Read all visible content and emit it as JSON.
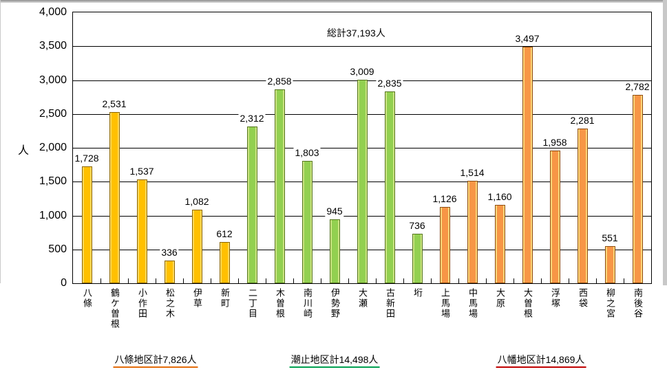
{
  "y_axis_title": "人",
  "annotation": "総計37,193人",
  "chart_data": {
    "type": "bar",
    "title": "",
    "xlabel": "",
    "ylabel": "人",
    "ylim": [
      0,
      4000
    ],
    "ytick_interval": 500,
    "ytick_labels": [
      "0",
      "500",
      "1,000",
      "1,500",
      "2,000",
      "2,500",
      "3,000",
      "3,500",
      "4,000"
    ],
    "grid": "horizontal",
    "legend": "none",
    "total_annotation": "総計37,193人",
    "categories": [
      "八條",
      "鶴ケ曽根",
      "小作田",
      "松之木",
      "伊草",
      "新町",
      "二丁目",
      "木曽根",
      "南川崎",
      "伊勢野",
      "大瀬",
      "古新田",
      "垳",
      "上馬場",
      "中馬場",
      "大原",
      "大曽根",
      "浮塚",
      "西袋",
      "柳之宮",
      "南後谷"
    ],
    "values": [
      1728,
      2531,
      1537,
      336,
      1082,
      612,
      2312,
      2858,
      1803,
      945,
      3009,
      2835,
      736,
      1126,
      1514,
      1160,
      3497,
      1958,
      2281,
      551,
      2782
    ],
    "value_labels": [
      "1,728",
      "2,531",
      "1,537",
      "336",
      "1,082",
      "612",
      "2,312",
      "2,858",
      "1,803",
      "945",
      "3,009",
      "2,835",
      "736",
      "1,126",
      "1,514",
      "1,160",
      "3,497",
      "1,958",
      "2,281",
      "551",
      "2,782"
    ],
    "groups": [
      {
        "name": "hachijo-district",
        "label": "八條地区計7,826人",
        "count": 6,
        "fill": "#FFC000",
        "border": "#8A6500",
        "highlight": "#FFD95C",
        "underline": "#E36C0A"
      },
      {
        "name": "shiodome-district",
        "label": "潮止地区計14,498人",
        "count": 7,
        "fill": "#92D050",
        "border": "#55761F",
        "highlight": "#CBE381",
        "underline": "#00A050"
      },
      {
        "name": "yawata-district",
        "label": "八幡地区計14,869人",
        "count": 8,
        "fill": "#F79646",
        "border": "#8F4C10",
        "highlight": "#FCD77A",
        "underline": "#C00000"
      }
    ]
  }
}
